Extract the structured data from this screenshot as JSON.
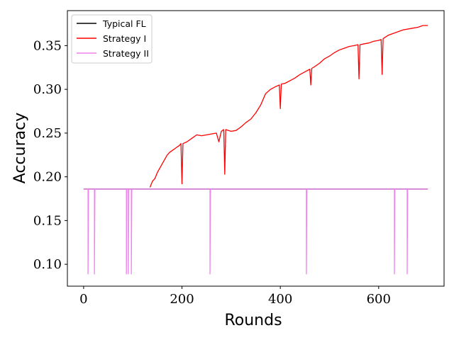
{
  "chart_data": {
    "type": "line",
    "xlabel": "Rounds",
    "ylabel": "Accuracy",
    "xlim": [
      -33,
      733
    ],
    "ylim": [
      0.075,
      0.39
    ],
    "xticks": [
      0,
      200,
      400,
      600
    ],
    "yticks": [
      0.1,
      0.15,
      0.2,
      0.25,
      0.3,
      0.35
    ],
    "xtick_labels": [
      "0",
      "200",
      "400",
      "600"
    ],
    "ytick_labels": [
      "0.10",
      "0.15",
      "0.20",
      "0.25",
      "0.30",
      "0.35"
    ],
    "grid": false,
    "legend_position": "top-left",
    "series": [
      {
        "name": "Typical FL",
        "color": "#000000",
        "points": [
          [
            0,
            0.186
          ],
          [
            700,
            0.186
          ]
        ]
      },
      {
        "name": "Strategy I",
        "color": "#ff0000",
        "points": [
          [
            135,
            0.188
          ],
          [
            140,
            0.195
          ],
          [
            145,
            0.198
          ],
          [
            150,
            0.205
          ],
          [
            155,
            0.21
          ],
          [
            160,
            0.215
          ],
          [
            165,
            0.22
          ],
          [
            170,
            0.225
          ],
          [
            175,
            0.228
          ],
          [
            180,
            0.23
          ],
          [
            185,
            0.232
          ],
          [
            190,
            0.234
          ],
          [
            195,
            0.236
          ],
          [
            198,
            0.238
          ],
          [
            200,
            0.192
          ],
          [
            202,
            0.238
          ],
          [
            210,
            0.24
          ],
          [
            220,
            0.244
          ],
          [
            230,
            0.248
          ],
          [
            240,
            0.247
          ],
          [
            250,
            0.248
          ],
          [
            260,
            0.249
          ],
          [
            270,
            0.25
          ],
          [
            275,
            0.24
          ],
          [
            280,
            0.252
          ],
          [
            285,
            0.254
          ],
          [
            287,
            0.203
          ],
          [
            289,
            0.254
          ],
          [
            300,
            0.252
          ],
          [
            310,
            0.253
          ],
          [
            320,
            0.257
          ],
          [
            330,
            0.262
          ],
          [
            340,
            0.266
          ],
          [
            350,
            0.273
          ],
          [
            360,
            0.282
          ],
          [
            370,
            0.295
          ],
          [
            380,
            0.3
          ],
          [
            390,
            0.303
          ],
          [
            398,
            0.305
          ],
          [
            400,
            0.278
          ],
          [
            402,
            0.306
          ],
          [
            410,
            0.307
          ],
          [
            420,
            0.31
          ],
          [
            430,
            0.313
          ],
          [
            440,
            0.317
          ],
          [
            450,
            0.32
          ],
          [
            460,
            0.323
          ],
          [
            462,
            0.305
          ],
          [
            464,
            0.324
          ],
          [
            470,
            0.326
          ],
          [
            480,
            0.33
          ],
          [
            490,
            0.335
          ],
          [
            500,
            0.338
          ],
          [
            510,
            0.342
          ],
          [
            520,
            0.345
          ],
          [
            530,
            0.347
          ],
          [
            540,
            0.349
          ],
          [
            550,
            0.35
          ],
          [
            558,
            0.351
          ],
          [
            560,
            0.312
          ],
          [
            562,
            0.351
          ],
          [
            570,
            0.352
          ],
          [
            580,
            0.353
          ],
          [
            590,
            0.355
          ],
          [
            600,
            0.356
          ],
          [
            605,
            0.357
          ],
          [
            607,
            0.317
          ],
          [
            609,
            0.358
          ],
          [
            620,
            0.362
          ],
          [
            630,
            0.364
          ],
          [
            640,
            0.366
          ],
          [
            650,
            0.368
          ],
          [
            660,
            0.369
          ],
          [
            670,
            0.37
          ],
          [
            680,
            0.371
          ],
          [
            690,
            0.373
          ],
          [
            700,
            0.373
          ]
        ]
      },
      {
        "name": "Strategy II",
        "color": "#ee82ee",
        "points": [
          [
            0,
            0.186
          ],
          [
            9,
            0.186
          ],
          [
            9,
            0.089
          ],
          [
            10,
            0.186
          ],
          [
            22,
            0.186
          ],
          [
            22,
            0.089
          ],
          [
            23,
            0.186
          ],
          [
            87,
            0.186
          ],
          [
            87,
            0.089
          ],
          [
            88,
            0.186
          ],
          [
            91,
            0.186
          ],
          [
            91,
            0.089
          ],
          [
            92,
            0.186
          ],
          [
            97,
            0.186
          ],
          [
            97,
            0.089
          ],
          [
            98,
            0.186
          ],
          [
            257,
            0.186
          ],
          [
            257,
            0.089
          ],
          [
            258,
            0.186
          ],
          [
            453,
            0.186
          ],
          [
            453,
            0.089
          ],
          [
            454,
            0.186
          ],
          [
            632,
            0.186
          ],
          [
            632,
            0.089
          ],
          [
            633,
            0.186
          ],
          [
            658,
            0.186
          ],
          [
            658,
            0.089
          ],
          [
            659,
            0.186
          ],
          [
            700,
            0.186
          ]
        ]
      }
    ]
  }
}
